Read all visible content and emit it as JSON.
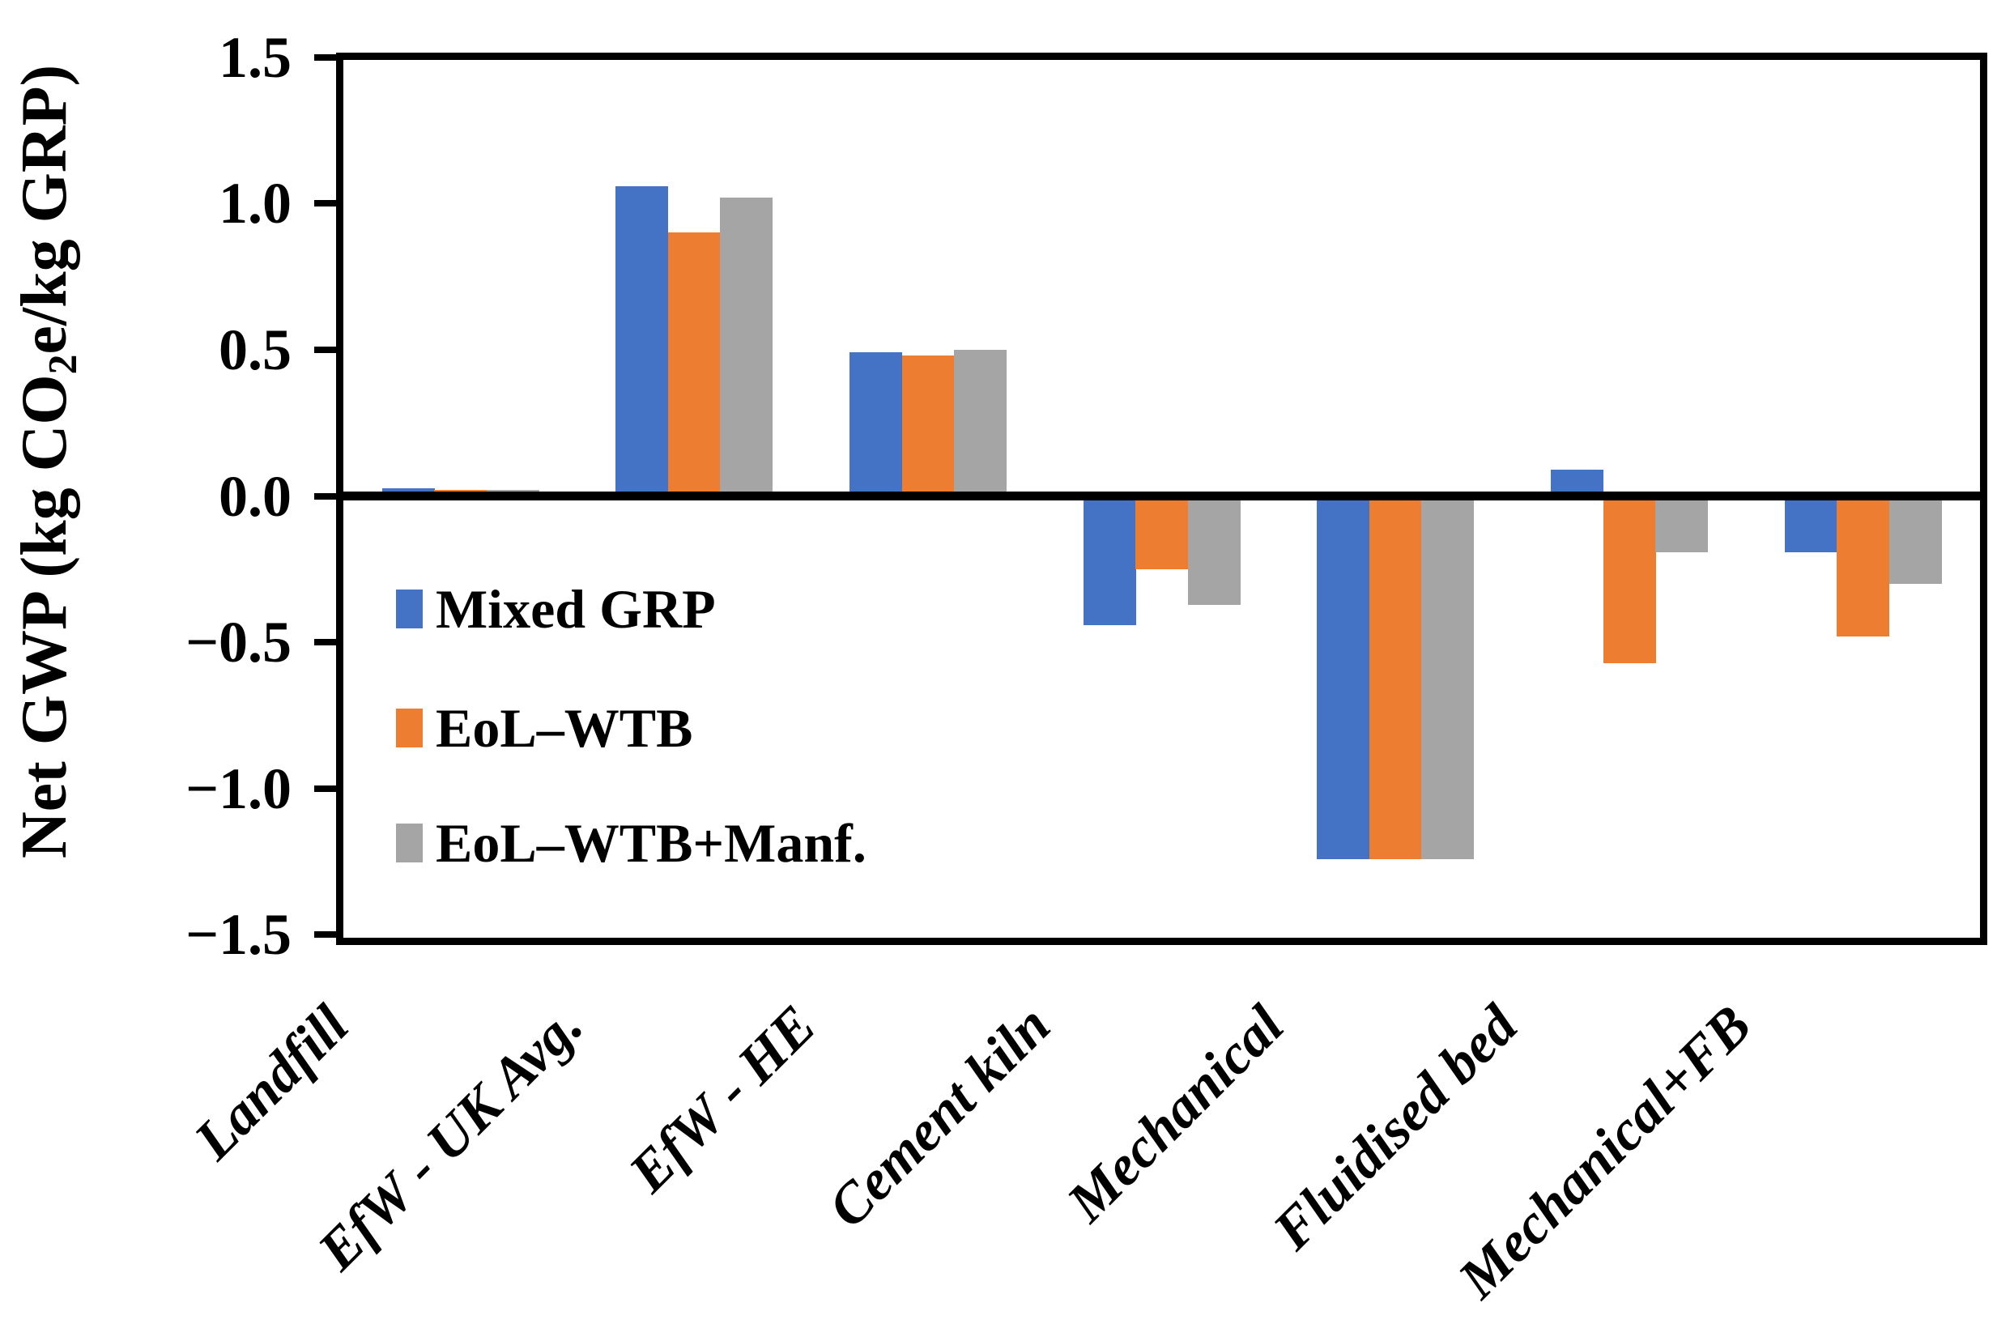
{
  "chart_data": {
    "type": "bar",
    "title": "",
    "ylabel": {
      "pre": "Net GWP (kg CO",
      "sub": "2",
      "post": "e/kg GRP)"
    },
    "categories": [
      "Landfill",
      "EfW - UK Avg.",
      "EfW - HE",
      "Cement kiln",
      "Mechanical",
      "Fluidised bed",
      "Mechanical+FB"
    ],
    "series": [
      {
        "name": "Mixed GRP",
        "color": "#4472C4",
        "values": [
          0.025,
          1.06,
          0.49,
          -0.44,
          -1.24,
          0.09,
          -0.19
        ]
      },
      {
        "name": "EoL–WTB",
        "color": "#ED7D31",
        "values": [
          0.022,
          0.9,
          0.48,
          -0.25,
          -1.24,
          -0.57,
          -0.48
        ]
      },
      {
        "name": "EoL–WTB+Manf.",
        "color": "#A5A5A5",
        "values": [
          0.02,
          1.02,
          0.5,
          -0.37,
          -1.24,
          -0.19,
          -0.3
        ]
      }
    ],
    "y_ticks": [
      "1.5",
      "1.0",
      "0.5",
      "0.0",
      "−0.5",
      "−1.0",
      "−1.5"
    ],
    "ylim": [
      -1.5,
      1.5
    ],
    "grid": false,
    "legend_position": "inside-left-below-zero"
  },
  "colors": {
    "axis": "#000000",
    "background": "#FFFFFF"
  }
}
